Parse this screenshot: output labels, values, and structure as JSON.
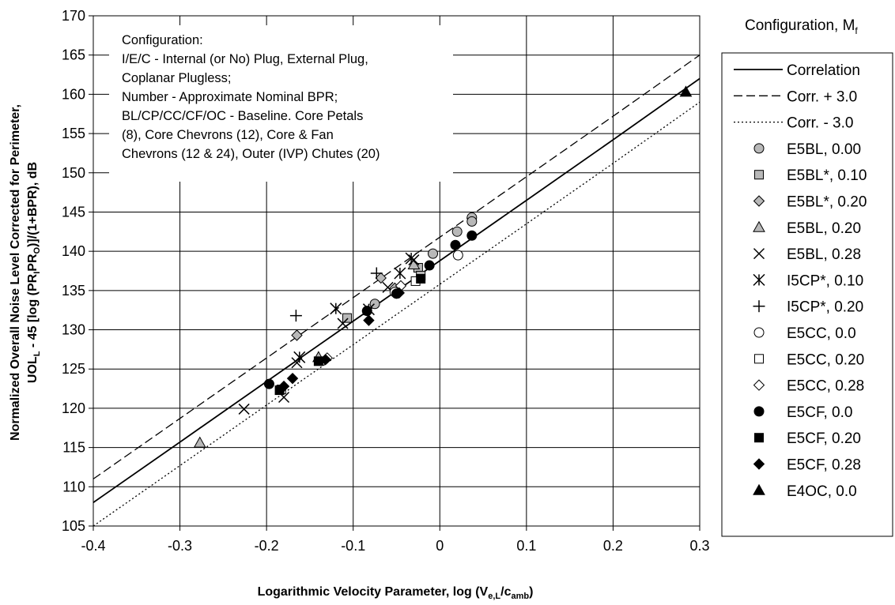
{
  "chart_data": {
    "type": "scatter",
    "xlabel": "Logarithmic Velocity Parameter, log (V_e,L/c_amb)",
    "ylabel": "Normalized Overall Noise Level Corrected for Perimeter, UOL_L - 45 [log (PR_I PR_O)]/(1+BPR), dB",
    "xlim": [
      -0.4,
      0.3
    ],
    "ylim": [
      105,
      170
    ],
    "x_ticks": [
      "-0.4",
      "-0.3",
      "-0.2",
      "-0.1",
      "0",
      "0.1",
      "0.2",
      "0.3"
    ],
    "y_ticks": [
      "105",
      "110",
      "115",
      "120",
      "125",
      "130",
      "135",
      "140",
      "145",
      "150",
      "155",
      "160",
      "165",
      "170"
    ],
    "grid": true,
    "annotation": [
      "Configuration:",
      "I/E/C - Internal (or No) Plug, External Plug,",
      "Coplanar Plugless;",
      "Number - Approximate Nominal BPR;",
      "BL/CP/CC/CF/OC - Baseline. Core Petals",
      "(8), Core Chevrons (12), Core & Fan",
      "Chevrons (12 & 24), Outer (IVP) Chutes (20)"
    ],
    "legend_title": "Configuration, M_f",
    "lines": [
      {
        "name": "Correlation",
        "style": "solid",
        "x": [
          -0.4,
          -0.3,
          -0.2,
          -0.1,
          0.0,
          0.1,
          0.2,
          0.3
        ],
        "y": [
          108.0,
          115.7,
          123.4,
          131.1,
          138.8,
          146.5,
          154.2,
          162.0
        ]
      },
      {
        "name": "Corr. + 3.0",
        "style": "dashed",
        "x": [
          -0.4,
          -0.3,
          -0.2,
          -0.1,
          0.0,
          0.1,
          0.2,
          0.3
        ],
        "y": [
          111.0,
          118.7,
          126.4,
          134.1,
          141.8,
          149.5,
          157.2,
          165.0
        ]
      },
      {
        "name": "Corr. - 3.0",
        "style": "dotted",
        "x": [
          -0.4,
          -0.3,
          -0.2,
          -0.1,
          0.0,
          0.1,
          0.2,
          0.3
        ],
        "y": [
          105.0,
          112.7,
          120.4,
          128.1,
          135.8,
          143.5,
          151.2,
          159.0
        ]
      }
    ],
    "series": [
      {
        "name": "E5BL, 0.00",
        "marker": "circle-gray",
        "x": [
          0.02,
          0.037,
          0.037,
          -0.008,
          -0.075
        ],
        "y": [
          142.5,
          144.3,
          143.8,
          139.7,
          133.3
        ]
      },
      {
        "name": "E5BL*, 0.10",
        "marker": "square-gray",
        "x": [
          -0.107,
          -0.025,
          -0.022
        ],
        "y": [
          131.5,
          137.9,
          136.9
        ]
      },
      {
        "name": "E5BL*, 0.20",
        "marker": "diamond-gray",
        "x": [
          -0.165,
          -0.068,
          -0.052
        ],
        "y": [
          129.3,
          136.6,
          135.3
        ]
      },
      {
        "name": "E5BL, 0.20",
        "marker": "triangle-gray",
        "x": [
          -0.277,
          -0.14,
          -0.03
        ],
        "y": [
          115.6,
          126.5,
          138.3
        ]
      },
      {
        "name": "E5BL, 0.28",
        "marker": "x",
        "x": [
          -0.226,
          -0.18,
          -0.165,
          -0.112,
          -0.06,
          -0.03
        ],
        "y": [
          119.9,
          121.4,
          125.8,
          130.8,
          135.4,
          138.9
        ]
      },
      {
        "name": "I5CP*, 0.10",
        "marker": "asterisk",
        "x": [
          -0.162,
          -0.12,
          -0.082,
          -0.046,
          -0.033
        ],
        "y": [
          126.5,
          132.7,
          132.6,
          137.2,
          139.1
        ]
      },
      {
        "name": "I5CP*, 0.20",
        "marker": "plus",
        "x": [
          -0.166,
          -0.073
        ],
        "y": [
          131.8,
          137.2
        ]
      },
      {
        "name": "E5CC, 0.0",
        "marker": "circle-open",
        "x": [
          0.021,
          -0.052
        ],
        "y": [
          139.5,
          134.8
        ]
      },
      {
        "name": "E5CC, 0.20",
        "marker": "square-open",
        "x": [
          -0.183,
          -0.028
        ],
        "y": [
          122.4,
          136.2
        ]
      },
      {
        "name": "E5CC, 0.28",
        "marker": "diamond-open",
        "x": [
          -0.13,
          -0.045
        ],
        "y": [
          126.4,
          135.6
        ]
      },
      {
        "name": "E5CF, 0.0",
        "marker": "circle-black",
        "x": [
          -0.197,
          -0.084,
          -0.05,
          -0.012,
          0.018,
          0.037
        ],
        "y": [
          123.1,
          132.4,
          134.6,
          138.2,
          140.8,
          142.0
        ]
      },
      {
        "name": "E5CF, 0.20",
        "marker": "square-black",
        "x": [
          -0.185,
          -0.14,
          -0.022
        ],
        "y": [
          122.3,
          126.0,
          136.5
        ]
      },
      {
        "name": "E5CF, 0.28",
        "marker": "diamond-black",
        "x": [
          -0.18,
          -0.17,
          -0.132,
          -0.082,
          -0.047
        ],
        "y": [
          122.8,
          123.8,
          126.2,
          131.2,
          134.7
        ]
      },
      {
        "name": "E4OC, 0.0",
        "marker": "triangle-black",
        "x": [
          0.284
        ],
        "y": [
          160.3
        ]
      }
    ]
  }
}
